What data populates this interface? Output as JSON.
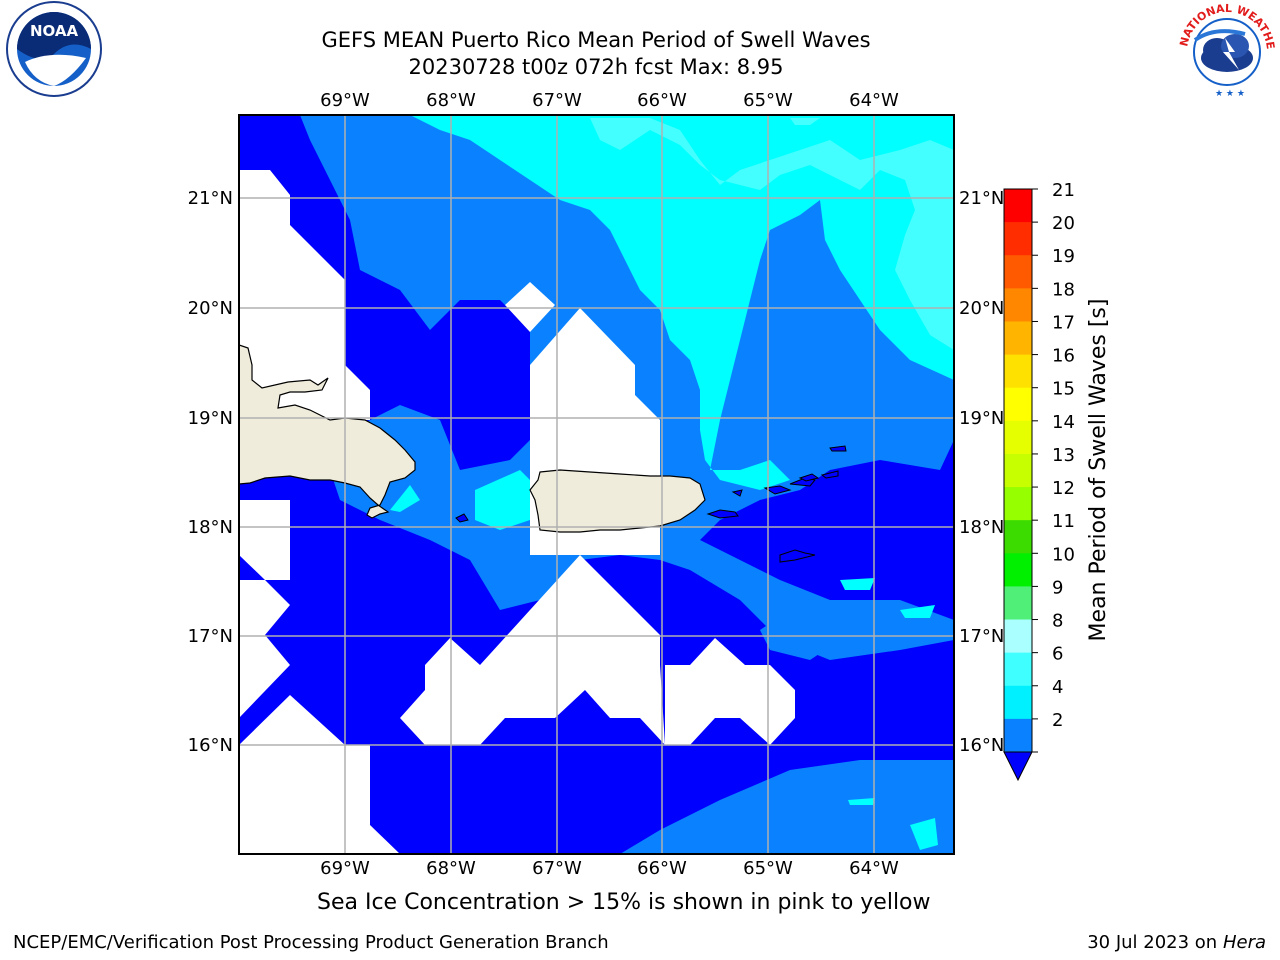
{
  "title": {
    "line1": "GEFS MEAN Puerto Rico Mean Period of Swell Waves",
    "line2": "20230728 t00z 072h fcst   Max: 8.95"
  },
  "map": {
    "lon_ticks": [
      "69°W",
      "68°W",
      "67°W",
      "66°W",
      "65°W",
      "64°W"
    ],
    "lat_ticks": [
      "21°N",
      "20°N",
      "19°N",
      "18°N",
      "17°N",
      "16°N"
    ],
    "colors": {
      "ocean_dark": "#0000ff",
      "ocean_mid": "#0a82ff",
      "ocean_light": "#00ffff",
      "ocean_pale": "#43ffff",
      "land": "#efecdc",
      "grid": "#b0b0b0"
    }
  },
  "colorbar": {
    "label": "Mean Period of Swell Waves [s]",
    "ticks": [
      "21",
      "20",
      "19",
      "18",
      "17",
      "16",
      "15",
      "14",
      "13",
      "12",
      "11",
      "10",
      "9",
      "8",
      "6",
      "4",
      "2"
    ],
    "colors": [
      "#ff0000",
      "#ff2d00",
      "#ff5a00",
      "#ff8700",
      "#ffb400",
      "#ffe100",
      "#ffff00",
      "#e6ff00",
      "#c8ff00",
      "#96ff00",
      "#3cdc00",
      "#00f000",
      "#50f078",
      "#aaffff",
      "#40ffff",
      "#00f0ff",
      "#0a82ff"
    ],
    "under_color": "#0000ff"
  },
  "caption": "Sea Ice Concentration > 15% is shown in pink to yellow",
  "footer": {
    "left": "NCEP/EMC/Verification Post Processing Product Generation Branch",
    "right_date": "30 Jul 2023 on ",
    "right_host": "Hera"
  },
  "logos": {
    "noaa": "NOAA",
    "nws": "NATIONAL WEATHER SERVICE"
  }
}
